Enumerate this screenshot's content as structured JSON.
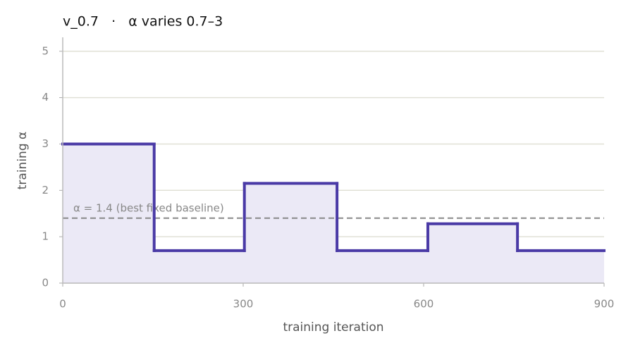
{
  "chart_data": {
    "type": "step",
    "title": "v_0.7   ·   α varies 0.7–3",
    "x_label": "training iteration",
    "y_label": "training α",
    "x": [
      0,
      152,
      302,
      456,
      607,
      756,
      900
    ],
    "values": [
      3.0,
      0.7,
      2.15,
      0.7,
      1.28,
      0.7,
      0.7
    ],
    "color": "#4a3aa6",
    "fill": "#ebe9f6",
    "xlim": [
      0,
      900
    ],
    "ylim": [
      0,
      5.3
    ],
    "xticks": [
      0,
      300,
      600,
      900
    ],
    "yticks": [
      0,
      1,
      2,
      3,
      4,
      5
    ],
    "grid": true,
    "hline": {
      "value": 1.4,
      "label": "α = 1.4 (best fixed baseline)",
      "color": "#888888"
    }
  }
}
